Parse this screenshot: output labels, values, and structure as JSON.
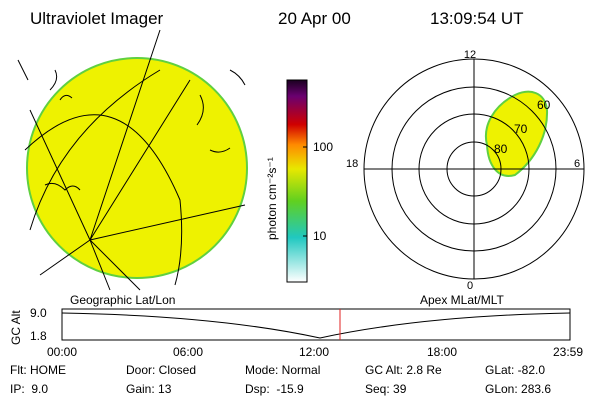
{
  "header": {
    "title": "Ultraviolet Imager",
    "date": "20 Apr 00",
    "time": "13:09:54 UT"
  },
  "colorbar": {
    "label": "photon cm⁻²s⁻¹",
    "ticks": [
      "100",
      "10"
    ]
  },
  "polar": {
    "mlt_labels": [
      "12",
      "18",
      "6",
      "0"
    ],
    "lat_labels": [
      "80",
      "70",
      "60"
    ]
  },
  "timeline": {
    "left_label": "Geographic Lat/Lon",
    "right_label": "Apex MLat/MLT",
    "axis_label": "GC Alt",
    "yticks": [
      "9.0",
      "1.8"
    ],
    "xticks": [
      "00:00",
      "06:00",
      "12:00",
      "18:00",
      "23:59"
    ]
  },
  "status": [
    [
      "Flt: HOME",
      "Door: Closed",
      "Mode: Normal",
      "GC Alt: 2.8 Re",
      "GLat: -82.0"
    ],
    [
      "IP:  9.0",
      "Gain: 13",
      "Dsp:  -15.9",
      "Seq: 39",
      "GLon: 283.6"
    ]
  ]
}
